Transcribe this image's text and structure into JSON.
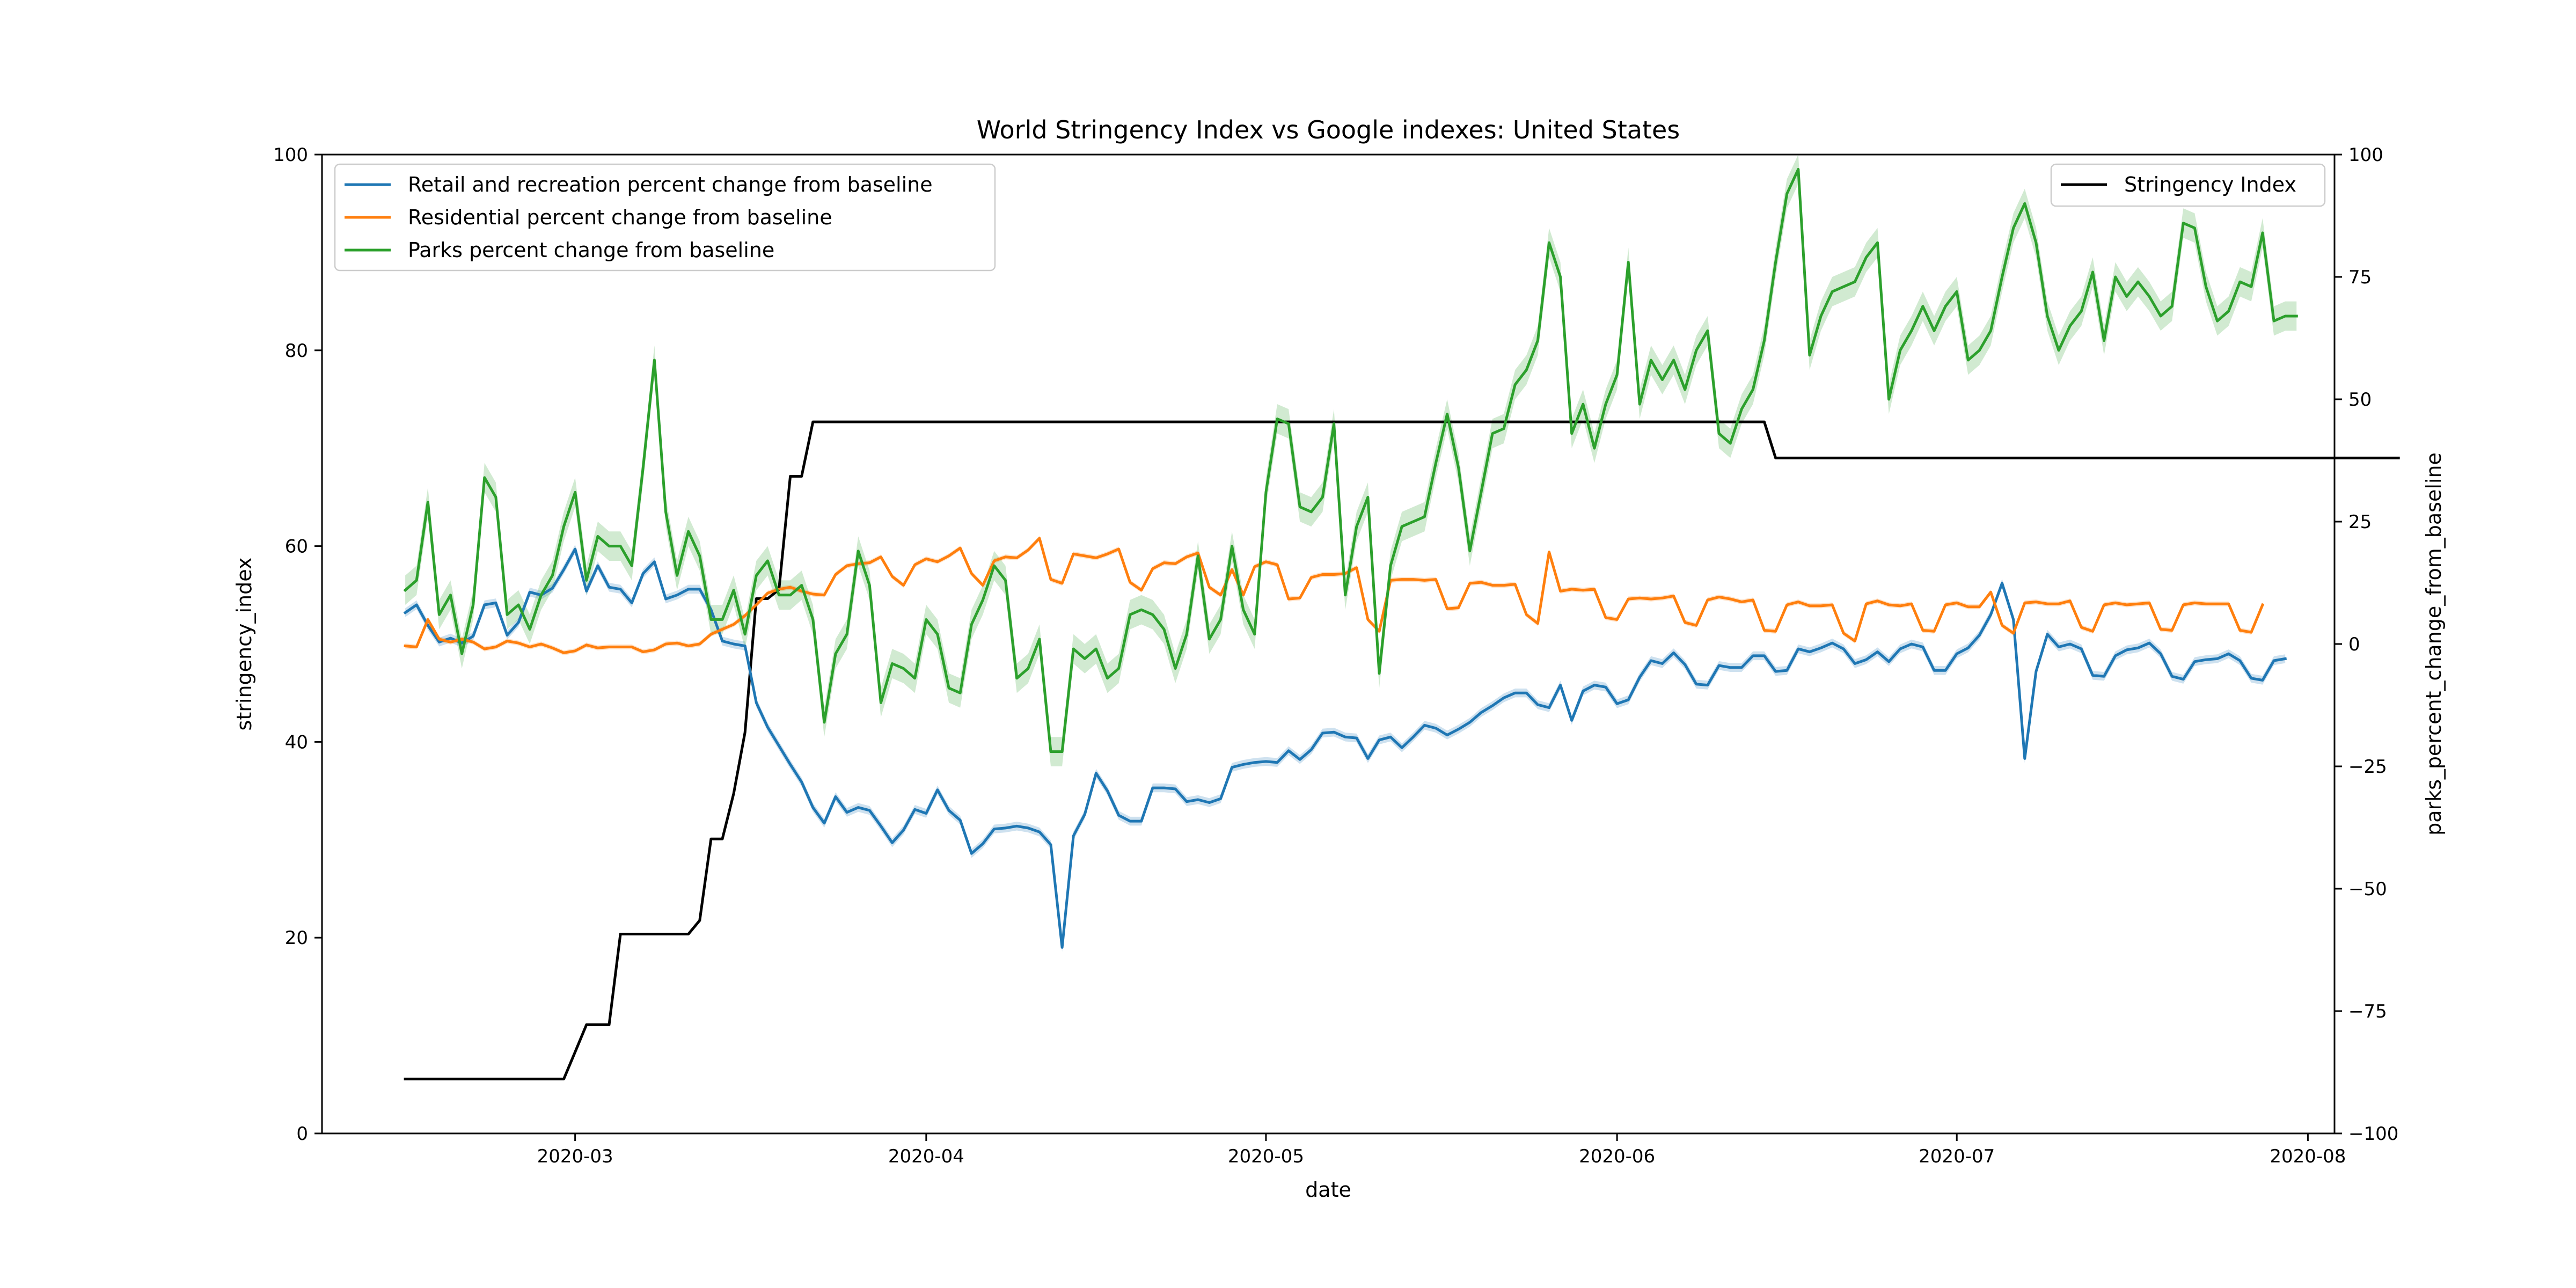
{
  "chart_data": {
    "type": "line",
    "title": "World Stringency Index vs Google indexes: United States",
    "xlabel": "date",
    "ylabel_left": "stringency_index",
    "ylabel_right": "parks_percent_change_from_baseline",
    "ylim_left": [
      0,
      100
    ],
    "ylim_right": [
      -100,
      100
    ],
    "yticks_left": [
      "0",
      "20",
      "40",
      "60",
      "80",
      "100"
    ],
    "yticks_right": [
      "−100",
      "−75",
      "−50",
      "−25",
      "0",
      "25",
      "50",
      "75",
      "100"
    ],
    "x_start": "2020-02-15",
    "x_end": "2020-07-26",
    "x_ticks": [
      "2020-03",
      "2020-04",
      "2020-05",
      "2020-06",
      "2020-07",
      "2020-08"
    ],
    "grid": false,
    "legend_left": {
      "placement": "top-left",
      "entries": [
        "Retail and recreation percent change from baseline",
        "Residential percent change from baseline",
        "Parks percent change from baseline"
      ]
    },
    "legend_right": {
      "placement": "top-right",
      "entries": [
        "Stringency Index"
      ]
    },
    "colors": {
      "retail": "#1f77b4",
      "residential": "#ff7f0e",
      "parks": "#2ca02c",
      "stringency": "#000000"
    },
    "series": [
      {
        "name": "Retail and recreation percent change from baseline",
        "axis": "left",
        "values": [
          53.2,
          54.0,
          51.9,
          50.2,
          50.6,
          50.1,
          50.8,
          54.0,
          54.2,
          50.9,
          52.2,
          55.3,
          55.0,
          55.7,
          57.6,
          59.7,
          55.4,
          58.0,
          55.8,
          55.6,
          54.2,
          57.2,
          58.4,
          54.6,
          55.0,
          55.6,
          55.6,
          53.5,
          50.3,
          50.0,
          49.8,
          44.0,
          41.5,
          39.6,
          37.7,
          35.9,
          33.3,
          31.7,
          34.4,
          32.8,
          33.3,
          33.0,
          31.4,
          29.7,
          31.0,
          33.1,
          32.7,
          35.1,
          33.0,
          32.0,
          28.6,
          29.6,
          31.1,
          31.2,
          31.4,
          31.2,
          30.8,
          29.5,
          19.0,
          30.4,
          32.6,
          36.8,
          35.0,
          32.5,
          31.9,
          31.9,
          35.3,
          35.3,
          35.2,
          33.9,
          34.1,
          33.8,
          34.2,
          37.4,
          37.7,
          37.9,
          38.0,
          37.9,
          39.1,
          38.2,
          39.2,
          40.9,
          41.0,
          40.5,
          40.4,
          38.3,
          40.2,
          40.5,
          39.4,
          40.5,
          41.7,
          41.4,
          40.7,
          41.3,
          42.0,
          43.0,
          43.7,
          44.5,
          45.0,
          45.0,
          43.8,
          43.5,
          45.8,
          42.2,
          45.2,
          45.8,
          45.6,
          43.9,
          44.3,
          46.6,
          48.3,
          48.0,
          49.1,
          47.9,
          45.9,
          45.8,
          47.8,
          47.6,
          47.6,
          48.8,
          48.8,
          47.2,
          47.3,
          49.5,
          49.2,
          49.6,
          50.1,
          49.5,
          48.0,
          48.4,
          49.2,
          48.2,
          49.5,
          50.0,
          49.7,
          47.3,
          47.3,
          49.0,
          49.6,
          50.9,
          53.0,
          56.2,
          52.5,
          38.3,
          47.2,
          51.0,
          49.7,
          50.0,
          49.5,
          46.8,
          46.7,
          48.8,
          49.4,
          49.6,
          50.1,
          49.0,
          46.7,
          46.4,
          48.2,
          48.4,
          48.5,
          49.0,
          48.3,
          46.5,
          46.3,
          48.3,
          48.5
        ]
      },
      {
        "name": "Residential percent change from baseline",
        "axis": "left",
        "values": [
          49.8,
          49.7,
          52.5,
          50.5,
          50.2,
          50.5,
          50.2,
          49.5,
          49.7,
          50.3,
          50.1,
          49.7,
          50.0,
          49.6,
          49.1,
          49.3,
          49.9,
          49.6,
          49.7,
          49.7,
          49.7,
          49.2,
          49.4,
          50.0,
          50.1,
          49.8,
          50.0,
          51.0,
          51.5,
          52.0,
          52.9,
          54.0,
          55.2,
          55.6,
          55.8,
          55.4,
          55.1,
          55.0,
          57.1,
          58.0,
          58.2,
          58.3,
          58.9,
          56.9,
          56.0,
          58.1,
          58.7,
          58.4,
          59.0,
          59.8,
          57.2,
          56.0,
          58.5,
          58.9,
          58.8,
          59.6,
          60.8,
          56.6,
          56.2,
          59.2,
          59.0,
          58.8,
          59.2,
          59.7,
          56.3,
          55.5,
          57.7,
          58.3,
          58.2,
          58.9,
          59.3,
          55.8,
          55.0,
          57.6,
          55.0,
          57.9,
          58.4,
          58.1,
          54.6,
          54.7,
          56.8,
          57.1,
          57.1,
          57.2,
          57.8,
          52.5,
          51.3,
          56.5,
          56.6,
          56.6,
          56.5,
          56.6,
          53.6,
          53.7,
          56.2,
          56.3,
          56.0,
          56.0,
          56.1,
          53.0,
          52.1,
          59.4,
          55.4,
          55.6,
          55.5,
          55.6,
          52.7,
          52.5,
          54.6,
          54.7,
          54.6,
          54.7,
          54.9,
          52.2,
          51.9,
          54.5,
          54.8,
          54.6,
          54.3,
          54.5,
          51.4,
          51.3,
          54.0,
          54.3,
          53.9,
          53.9,
          54.0,
          51.1,
          50.3,
          54.1,
          54.4,
          54.0,
          53.9,
          54.1,
          51.4,
          51.3,
          54.0,
          54.2,
          53.8,
          53.8,
          55.3,
          51.9,
          51.1,
          54.2,
          54.3,
          54.1,
          54.1,
          54.4,
          51.7,
          51.3,
          54.0,
          54.2,
          54.0,
          54.1,
          54.2,
          51.5,
          51.4,
          54.0,
          54.2,
          54.1,
          54.1,
          54.1,
          51.4,
          51.2,
          54.0
        ]
      },
      {
        "name": "Parks percent change from baseline",
        "axis": "right",
        "values": [
          11,
          13,
          29,
          6,
          10,
          -2,
          8,
          34,
          30,
          6,
          8,
          3,
          10,
          14,
          24,
          31,
          13,
          22,
          20,
          20,
          16,
          36,
          58,
          27,
          14,
          23,
          18,
          5,
          5,
          11,
          2,
          14,
          17,
          10,
          10,
          12,
          5,
          -16,
          -2,
          2,
          19,
          12,
          -12,
          -4,
          -5,
          -7,
          5,
          2,
          -9,
          -10,
          4,
          9,
          16,
          13,
          -7,
          -5,
          1,
          -22,
          -22,
          -1,
          -3,
          -1,
          -7,
          -5,
          6,
          7,
          6,
          3,
          -5,
          2,
          18,
          1,
          5,
          20,
          7,
          2,
          31,
          46,
          45,
          28,
          27,
          30,
          45,
          10,
          24,
          30,
          -6,
          16,
          24,
          25,
          26,
          37,
          47,
          36,
          19,
          31,
          43,
          44,
          53,
          56,
          62,
          82,
          75,
          43,
          49,
          40,
          49,
          55,
          78,
          49,
          58,
          54,
          58,
          52,
          60,
          64,
          43,
          41,
          48,
          52,
          62,
          78,
          92,
          97,
          59,
          67,
          72,
          73,
          74,
          79,
          82,
          50,
          60,
          64,
          69,
          64,
          69,
          72,
          58,
          60,
          64,
          75,
          85,
          90,
          82,
          67,
          60,
          65,
          68,
          76,
          62,
          75,
          71,
          74,
          71,
          67,
          69,
          86,
          85,
          73,
          66,
          68,
          74,
          73,
          84,
          66,
          67,
          67
        ]
      },
      {
        "name": "Stringency Index",
        "axis": "left",
        "values": [
          5.56,
          5.56,
          5.56,
          5.56,
          5.56,
          5.56,
          5.56,
          5.56,
          5.56,
          5.56,
          5.56,
          5.56,
          5.56,
          5.56,
          5.56,
          8.33,
          11.11,
          11.11,
          11.11,
          20.37,
          20.37,
          20.37,
          20.37,
          20.37,
          20.37,
          20.37,
          21.76,
          30.09,
          30.09,
          34.72,
          40.97,
          54.63,
          54.63,
          55.56,
          67.13,
          67.13,
          72.69,
          72.69,
          72.69,
          72.69,
          72.69,
          72.69,
          72.69,
          72.69,
          72.69,
          72.69,
          72.69,
          72.69,
          72.69,
          72.69,
          72.69,
          72.69,
          72.69,
          72.69,
          72.69,
          72.69,
          72.69,
          72.69,
          72.69,
          72.69,
          72.69,
          72.69,
          72.69,
          72.69,
          72.69,
          72.69,
          72.69,
          72.69,
          72.69,
          72.69,
          72.69,
          72.69,
          72.69,
          72.69,
          72.69,
          72.69,
          72.69,
          72.69,
          72.69,
          72.69,
          72.69,
          72.69,
          72.69,
          72.69,
          72.69,
          72.69,
          72.69,
          72.69,
          72.69,
          72.69,
          72.69,
          72.69,
          72.69,
          72.69,
          72.69,
          72.69,
          72.69,
          72.69,
          72.69,
          72.69,
          72.69,
          72.69,
          72.69,
          72.69,
          72.69,
          72.69,
          72.69,
          72.69,
          72.69,
          72.69,
          72.69,
          72.69,
          72.69,
          72.69,
          72.69,
          72.69,
          72.69,
          72.69,
          72.69,
          72.69,
          72.69,
          69.0,
          69.0,
          69.0,
          69.0,
          69.0,
          69.0,
          69.0,
          69.0,
          69.0,
          69.0,
          69.0,
          69.0,
          69.0,
          69.0,
          69.0,
          69.0,
          69.0,
          69.0,
          69.0,
          69.0,
          69.0,
          69.0,
          69.0,
          69.0,
          69.0,
          69.0,
          69.0,
          69.0,
          69.0,
          69.0,
          69.0,
          69.0,
          69.0,
          69.0,
          69.0,
          69.0,
          69.0,
          69.0,
          69.0,
          69.0,
          69.0,
          69.0,
          69.0,
          69.0,
          69.0,
          69.0,
          69.0,
          69.0,
          69.0,
          69.0,
          69.0,
          69.0,
          69.0,
          69.0,
          69.0,
          69.0
        ]
      }
    ]
  }
}
